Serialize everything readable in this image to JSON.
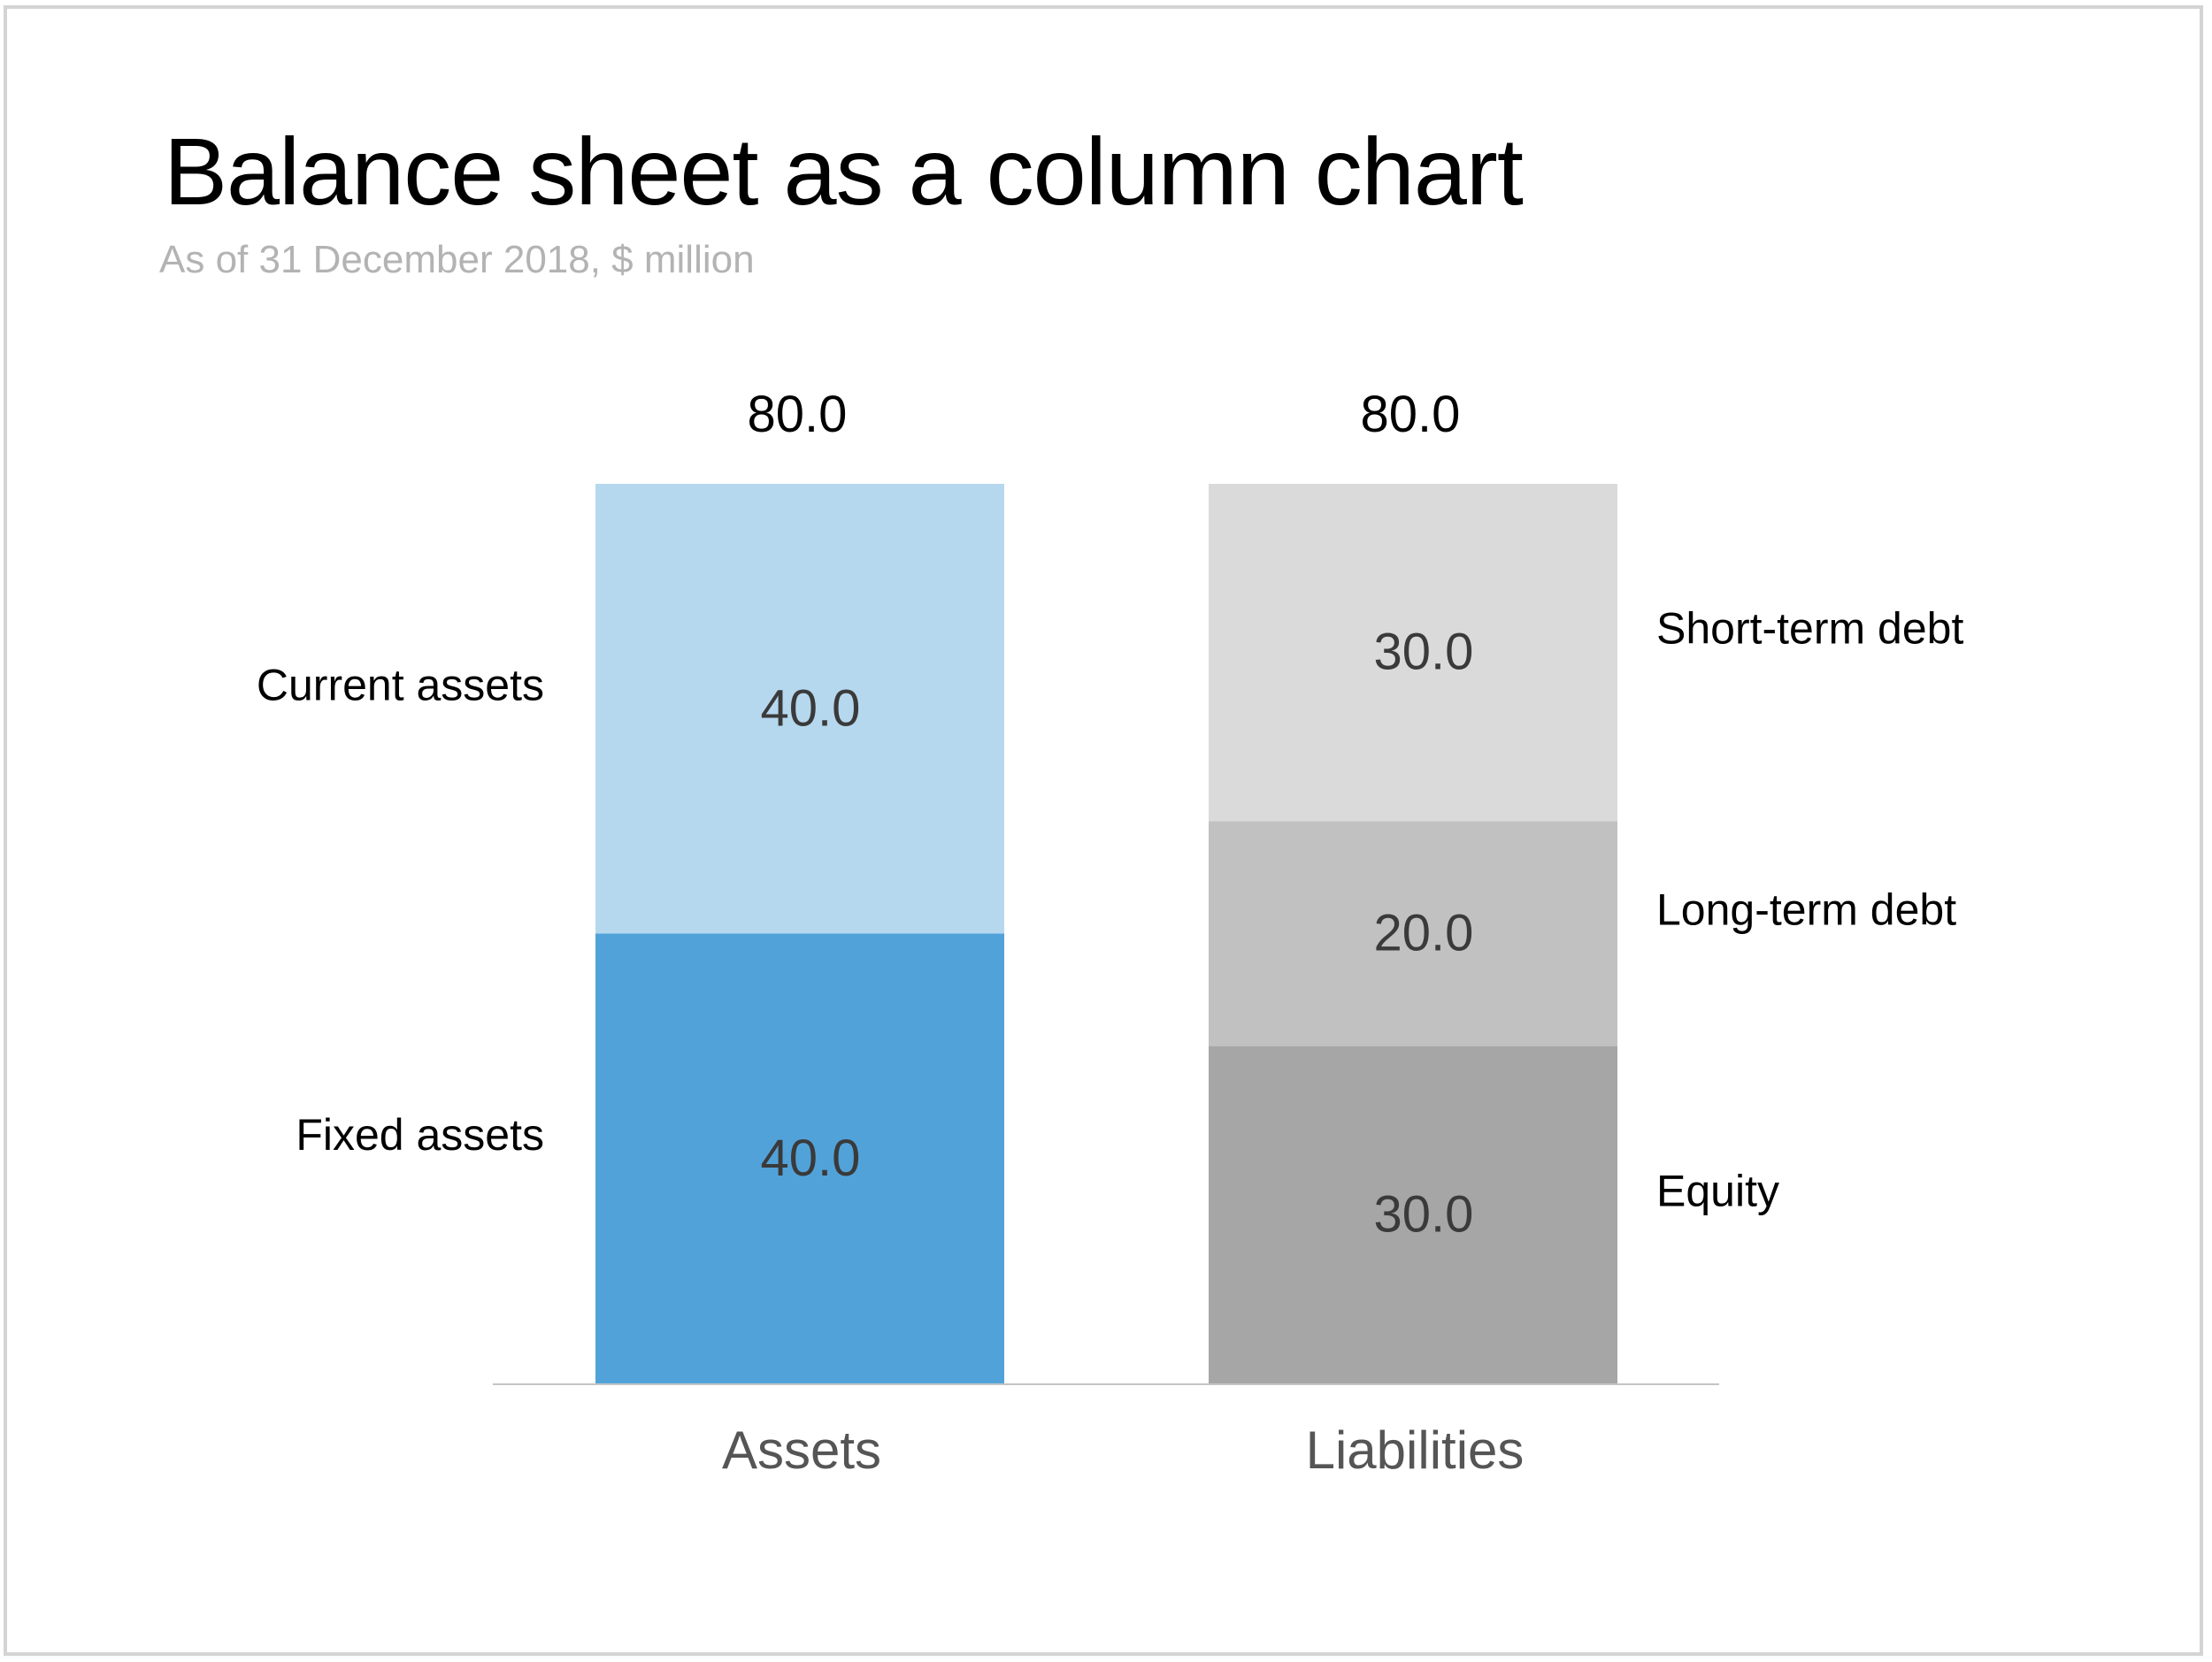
{
  "chart_data": {
    "type": "stacked-bar",
    "title": "Balance sheet as a column chart",
    "subtitle": "As of 31 December 2018, $ million",
    "categories": [
      "Assets",
      "Liabilities"
    ],
    "totals": [
      "80.0",
      "80.0"
    ],
    "ylim": [
      0,
      80
    ],
    "grid": false,
    "stacks": [
      {
        "category": "Assets",
        "label_side": "left",
        "segments": [
          {
            "name": "Fixed assets",
            "value": 40.0,
            "label": "40.0",
            "color": "#52a2da"
          },
          {
            "name": "Current assets",
            "value": 40.0,
            "label": "40.0",
            "color": "#b5d8ee"
          }
        ]
      },
      {
        "category": "Liabilities",
        "label_side": "right",
        "segments": [
          {
            "name": "Equity",
            "value": 30.0,
            "label": "30.0",
            "color": "#a6a6a6"
          },
          {
            "name": "Long-term debt",
            "value": 20.0,
            "label": "20.0",
            "color": "#c1c1c1"
          },
          {
            "name": "Short-term debt",
            "value": 30.0,
            "label": "30.0",
            "color": "#dadada"
          }
        ]
      }
    ]
  }
}
